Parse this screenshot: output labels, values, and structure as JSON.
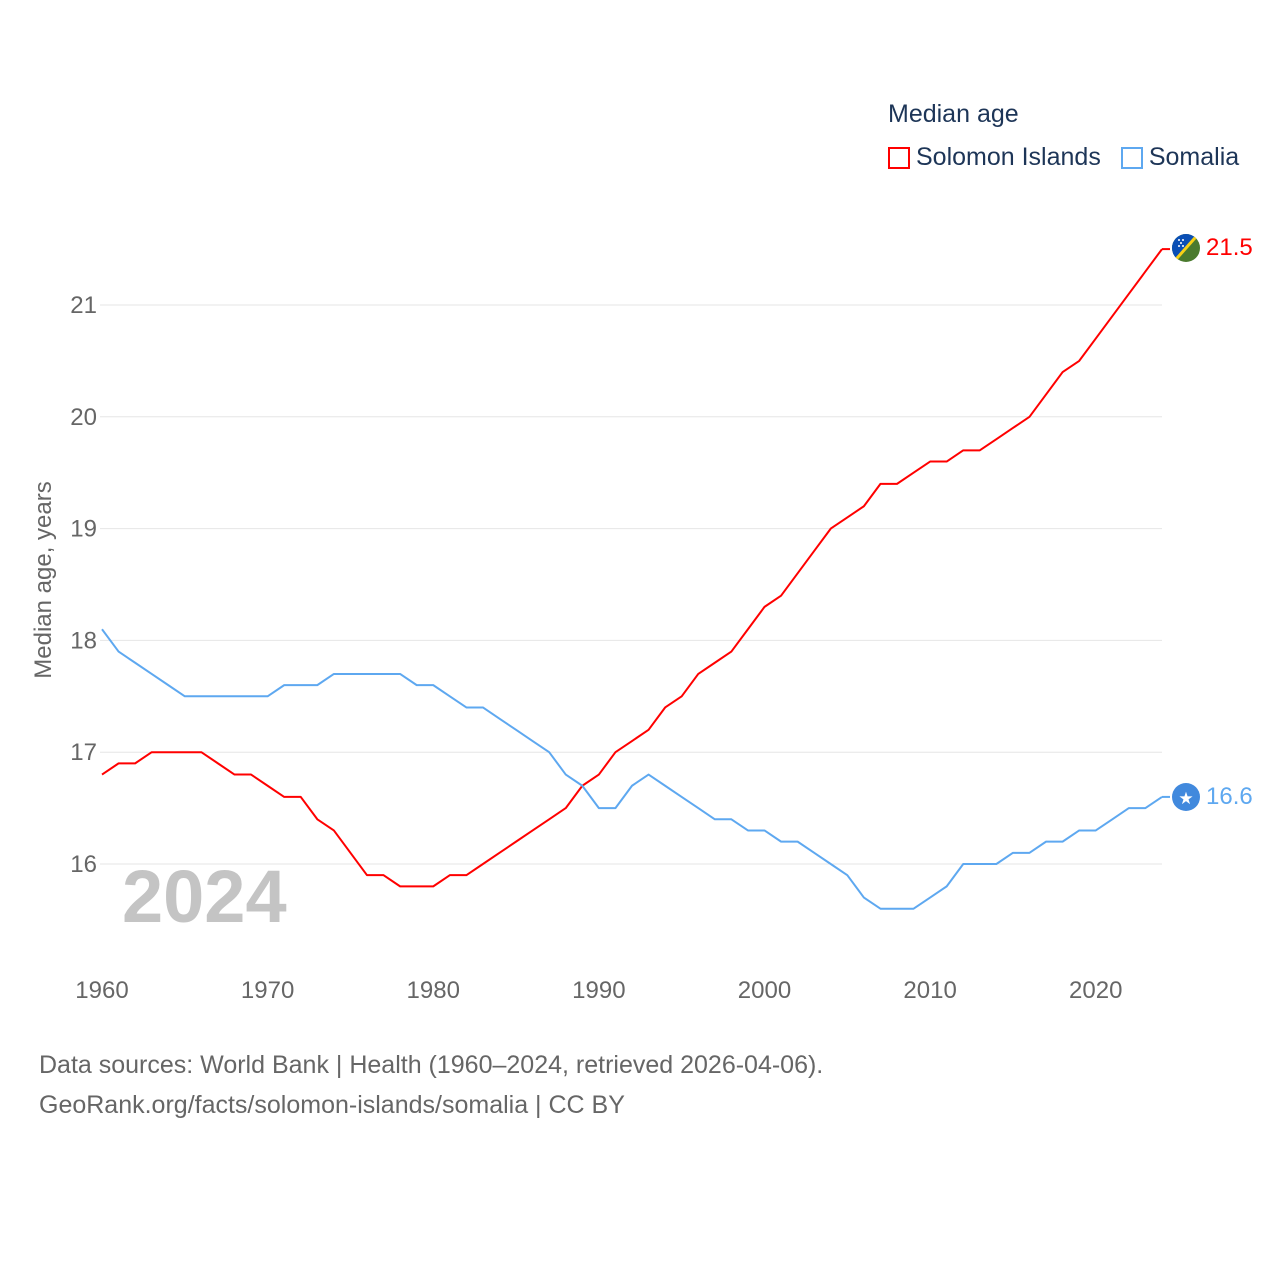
{
  "chart_data": {
    "type": "line",
    "title": "Median age",
    "ylabel": "Median age, years",
    "xlabel": "",
    "xlim": [
      1960,
      2024
    ],
    "ylim": [
      15.4,
      21.6
    ],
    "x_ticks": [
      "1960",
      "1970",
      "1980",
      "1990",
      "2000",
      "2010",
      "2020"
    ],
    "y_ticks": [
      "16",
      "17",
      "18",
      "19",
      "20",
      "21"
    ],
    "grid": true,
    "legend_placement": "top-right",
    "year_label": "2024",
    "x": [
      1960,
      1961,
      1962,
      1963,
      1964,
      1965,
      1966,
      1967,
      1968,
      1969,
      1970,
      1971,
      1972,
      1973,
      1974,
      1975,
      1976,
      1977,
      1978,
      1979,
      1980,
      1981,
      1982,
      1983,
      1984,
      1985,
      1986,
      1987,
      1988,
      1989,
      1990,
      1991,
      1992,
      1993,
      1994,
      1995,
      1996,
      1997,
      1998,
      1999,
      2000,
      2001,
      2002,
      2003,
      2004,
      2005,
      2006,
      2007,
      2008,
      2009,
      2010,
      2011,
      2012,
      2013,
      2014,
      2015,
      2016,
      2017,
      2018,
      2019,
      2020,
      2021,
      2022,
      2023,
      2024
    ],
    "series": [
      {
        "name": "Solomon Islands",
        "color": "#ff0000",
        "end_label": "21.5",
        "values": [
          16.8,
          16.9,
          16.9,
          17.0,
          17.0,
          17.0,
          17.0,
          16.9,
          16.8,
          16.8,
          16.7,
          16.6,
          16.6,
          16.4,
          16.3,
          16.1,
          15.9,
          15.9,
          15.8,
          15.8,
          15.8,
          15.9,
          15.9,
          16.0,
          16.1,
          16.2,
          16.3,
          16.4,
          16.5,
          16.7,
          16.8,
          17.0,
          17.1,
          17.2,
          17.4,
          17.5,
          17.7,
          17.8,
          17.9,
          18.1,
          18.3,
          18.4,
          18.6,
          18.8,
          19.0,
          19.1,
          19.2,
          19.4,
          19.4,
          19.5,
          19.6,
          19.6,
          19.7,
          19.7,
          19.8,
          19.9,
          20.0,
          20.2,
          20.4,
          20.5,
          20.7,
          20.9,
          21.1,
          21.3,
          21.5
        ]
      },
      {
        "name": "Somalia",
        "color": "#5ea8f0",
        "end_label": "16.6",
        "values": [
          18.1,
          17.9,
          17.8,
          17.7,
          17.6,
          17.5,
          17.5,
          17.5,
          17.5,
          17.5,
          17.5,
          17.6,
          17.6,
          17.6,
          17.7,
          17.7,
          17.7,
          17.7,
          17.7,
          17.6,
          17.6,
          17.5,
          17.4,
          17.4,
          17.3,
          17.2,
          17.1,
          17.0,
          16.8,
          16.7,
          16.5,
          16.5,
          16.7,
          16.8,
          16.7,
          16.6,
          16.5,
          16.4,
          16.4,
          16.3,
          16.3,
          16.2,
          16.2,
          16.1,
          16.0,
          15.9,
          15.7,
          15.6,
          15.6,
          15.6,
          15.7,
          15.8,
          16.0,
          16.0,
          16.0,
          16.1,
          16.1,
          16.2,
          16.2,
          16.3,
          16.3,
          16.4,
          16.5,
          16.5,
          16.6
        ]
      }
    ]
  },
  "footer": {
    "line1": "Data sources: World Bank | Health (1960–2024, retrieved 2026-04-06).",
    "line2": "GeoRank.org/facts/solomon-islands/somalia | CC BY"
  }
}
